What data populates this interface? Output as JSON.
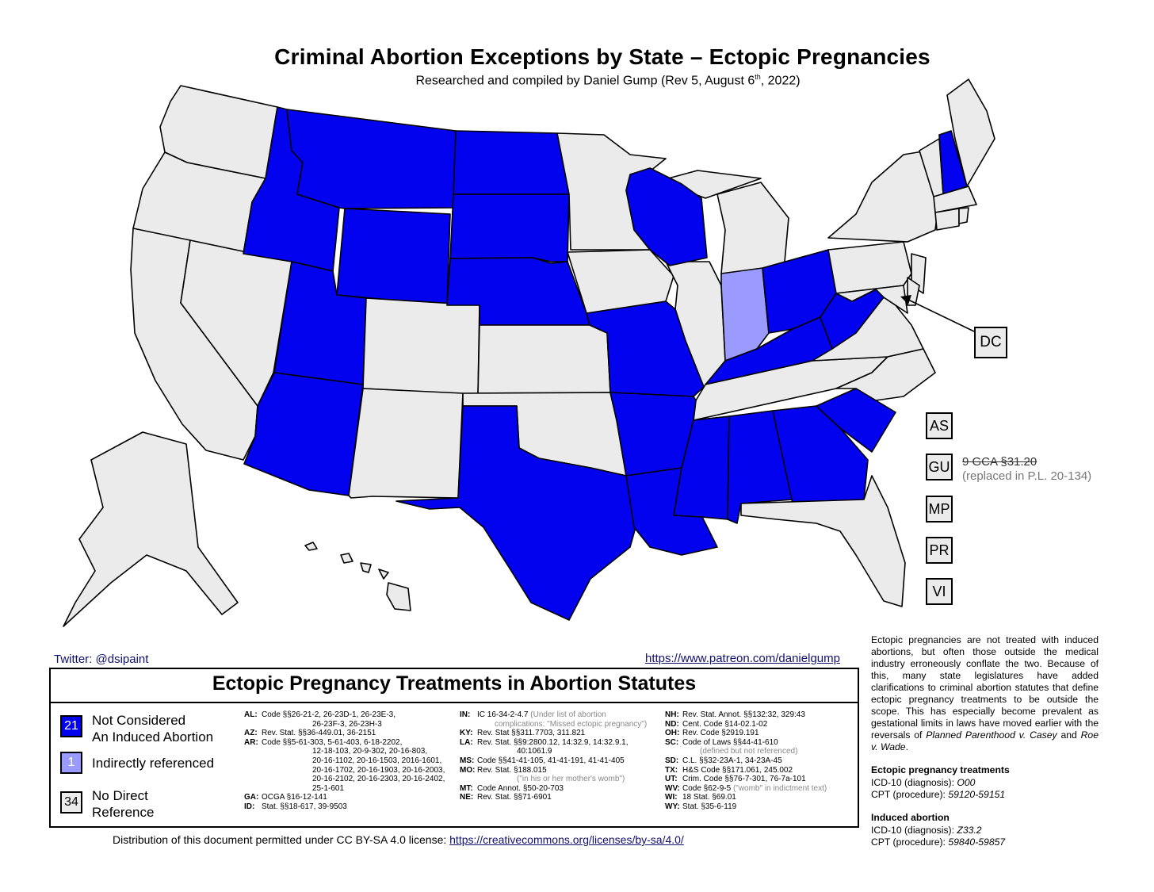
{
  "title": "Criminal Abortion Exceptions by State – Ectopic Pregnancies",
  "subtitle": {
    "text_before": "Researched and compiled by Daniel Gump (Rev 5, August 6",
    "sup": "th",
    "text_after": ", 2022)"
  },
  "colors": {
    "not_considered": "#0202ee",
    "indirect": "#9b9bff",
    "no_reference": "#ebebeb",
    "border": "#000000",
    "link": "#10106e"
  },
  "map": {
    "not_considered_states": [
      "ID",
      "MT",
      "WY",
      "ND",
      "SD",
      "NE",
      "UT",
      "AZ",
      "TX",
      "MO",
      "AR",
      "LA",
      "MS",
      "AL",
      "GA",
      "SC",
      "KY",
      "OH",
      "WV",
      "WI",
      "NH",
      "OK_none"
    ],
    "indirect_states": [
      "IN"
    ],
    "dc_label": "DC",
    "territories": [
      {
        "code": "AS"
      },
      {
        "code": "GU"
      },
      {
        "code": "MP"
      },
      {
        "code": "PR"
      },
      {
        "code": "VI"
      }
    ],
    "gu_note": {
      "struck": "9 GCA §31.20",
      "replaced": "(replaced in P.L. 20-134)"
    }
  },
  "links": {
    "twitter": "Twitter: @dsipaint",
    "patreon": "https://www.patreon.com/danielgump"
  },
  "legend": {
    "title": "Ectopic Pregnancy Treatments in Abortion Statutes",
    "items": [
      {
        "count": "21",
        "label_line1": "Not Considered",
        "label_line2": "An Induced Abortion"
      },
      {
        "count": "1",
        "label_line1": "Indirectly referenced",
        "label_line2": ""
      },
      {
        "count": "34",
        "label_line1": "No Direct",
        "label_line2": "Reference"
      }
    ]
  },
  "citations": {
    "col1": [
      {
        "st": "AL:",
        "text": "Code §§26-21-2, 26-23D-1, 26-23E-3,"
      },
      {
        "st": "",
        "text": "26-23F-3, 26-23H-3",
        "indent": "xl"
      },
      {
        "st": "AZ:",
        "text": "Rev. Stat. §§36-449.01, 36-2151"
      },
      {
        "st": "AR:",
        "text": "Code §§5-61-303, 5-61-403, 6-18-2202,"
      },
      {
        "st": "",
        "text": "12-18-103, 20-9-302, 20-16-803,",
        "indent": "xl"
      },
      {
        "st": "",
        "text": "20-16-1102, 20-16-1503, 2016-1601,",
        "indent": "xl"
      },
      {
        "st": "",
        "text": "20-16-1702, 20-16-1903, 20-16-2003,",
        "indent": "xl"
      },
      {
        "st": "",
        "text": "20-16-2102, 20-16-2303, 20-16-2402,",
        "indent": "xl"
      },
      {
        "st": "",
        "text": "25-1-601",
        "indent": "xl"
      },
      {
        "st": "GA:",
        "text": "OCGA §16-12-141"
      },
      {
        "st": "ID:",
        "text": "Stat. §§18-617, 39-9503"
      }
    ],
    "col2": [
      {
        "st": "IN:",
        "text": "IC 16-34-2-4.7 ",
        "note": "(Under list of abortion"
      },
      {
        "st": "",
        "note": "complications: \"Missed ectopic pregnancy\")",
        "indent": "md"
      },
      {
        "st": "KY:",
        "text": "Rev. Stat §§311.7703, 311.821"
      },
      {
        "st": "LA:",
        "text": "Rev. Stat. §§9:2800.12, 14:32.9, 14:32.9.1,"
      },
      {
        "st": "",
        "text": "40:1061.9",
        "indent": "lg"
      },
      {
        "st": "MS:",
        "text": "Code §§41-41-105, 41-41-191, 41-41-405"
      },
      {
        "st": "MO:",
        "text": "Rev. Stat. §188.015"
      },
      {
        "st": "",
        "note": "(\"in his or her mother's womb\")",
        "indent": "lg"
      },
      {
        "st": "MT:",
        "text": "Code Annot. §50-20-703"
      },
      {
        "st": "NE:",
        "text": "Rev. Stat. §§71-6901"
      }
    ],
    "col3": [
      {
        "st": "NH:",
        "text": "Rev. Stat. Annot. §§132:32, 329:43"
      },
      {
        "st": "ND:",
        "text": "Cent. Code §14-02.1-02"
      },
      {
        "st": "OH:",
        "text": "Rev. Code §2919.191"
      },
      {
        "st": "SC:",
        "text": "Code of Laws §§44-41-610"
      },
      {
        "st": "",
        "note": "(defined but not referenced)",
        "indent": "md"
      },
      {
        "st": "SD:",
        "text": "C.L. §§32-23A-1, 34-23A-45"
      },
      {
        "st": "TX:",
        "text": "H&S Code §§171.061, 245.002"
      },
      {
        "st": "UT:",
        "text": "Crim. Code §§76-7-301, 76-7a-101"
      },
      {
        "st": "WV:",
        "text": "Code §62-9-5 ",
        "note": "(\"womb\" in indictment text)"
      },
      {
        "st": "WI:",
        "text": "18 Stat. §69.01"
      },
      {
        "st": "WY:",
        "text": "Stat. §35-6-119"
      }
    ]
  },
  "license": {
    "text": "Distribution of this document permitted under CC BY-SA 4.0 license: ",
    "url": "https://creativecommons.org/licenses/by-sa/4.0/"
  },
  "side": {
    "paragraph_a": "Ectopic pregnancies are not treated with induced abortions, but often those outside the medical industry erroneously conflate the two. Because of this, many state legislatures have added clarifications to criminal abortion statutes that define ectopic pregnancy treatments to be outside the scope. This has especially become prevalent as gestational limits in laws have moved earlier with the reversals of ",
    "case1": "Planned Parenthood v. Casey",
    "and": " and ",
    "case2": "Roe v. Wade",
    "period": ".",
    "ectopic_head": "Ectopic pregnancy treatments",
    "ectopic_icd_label": "ICD-10 (diagnosis): ",
    "ectopic_icd": "O00",
    "ectopic_cpt_label": "CPT (procedure): ",
    "ectopic_cpt": "59120-59151",
    "induced_head": "Induced abortion",
    "induced_icd_label": "ICD-10 (diagnosis): ",
    "induced_icd": "Z33.2",
    "induced_cpt_label": "CPT (procedure): ",
    "induced_cpt": "59840-59857"
  }
}
